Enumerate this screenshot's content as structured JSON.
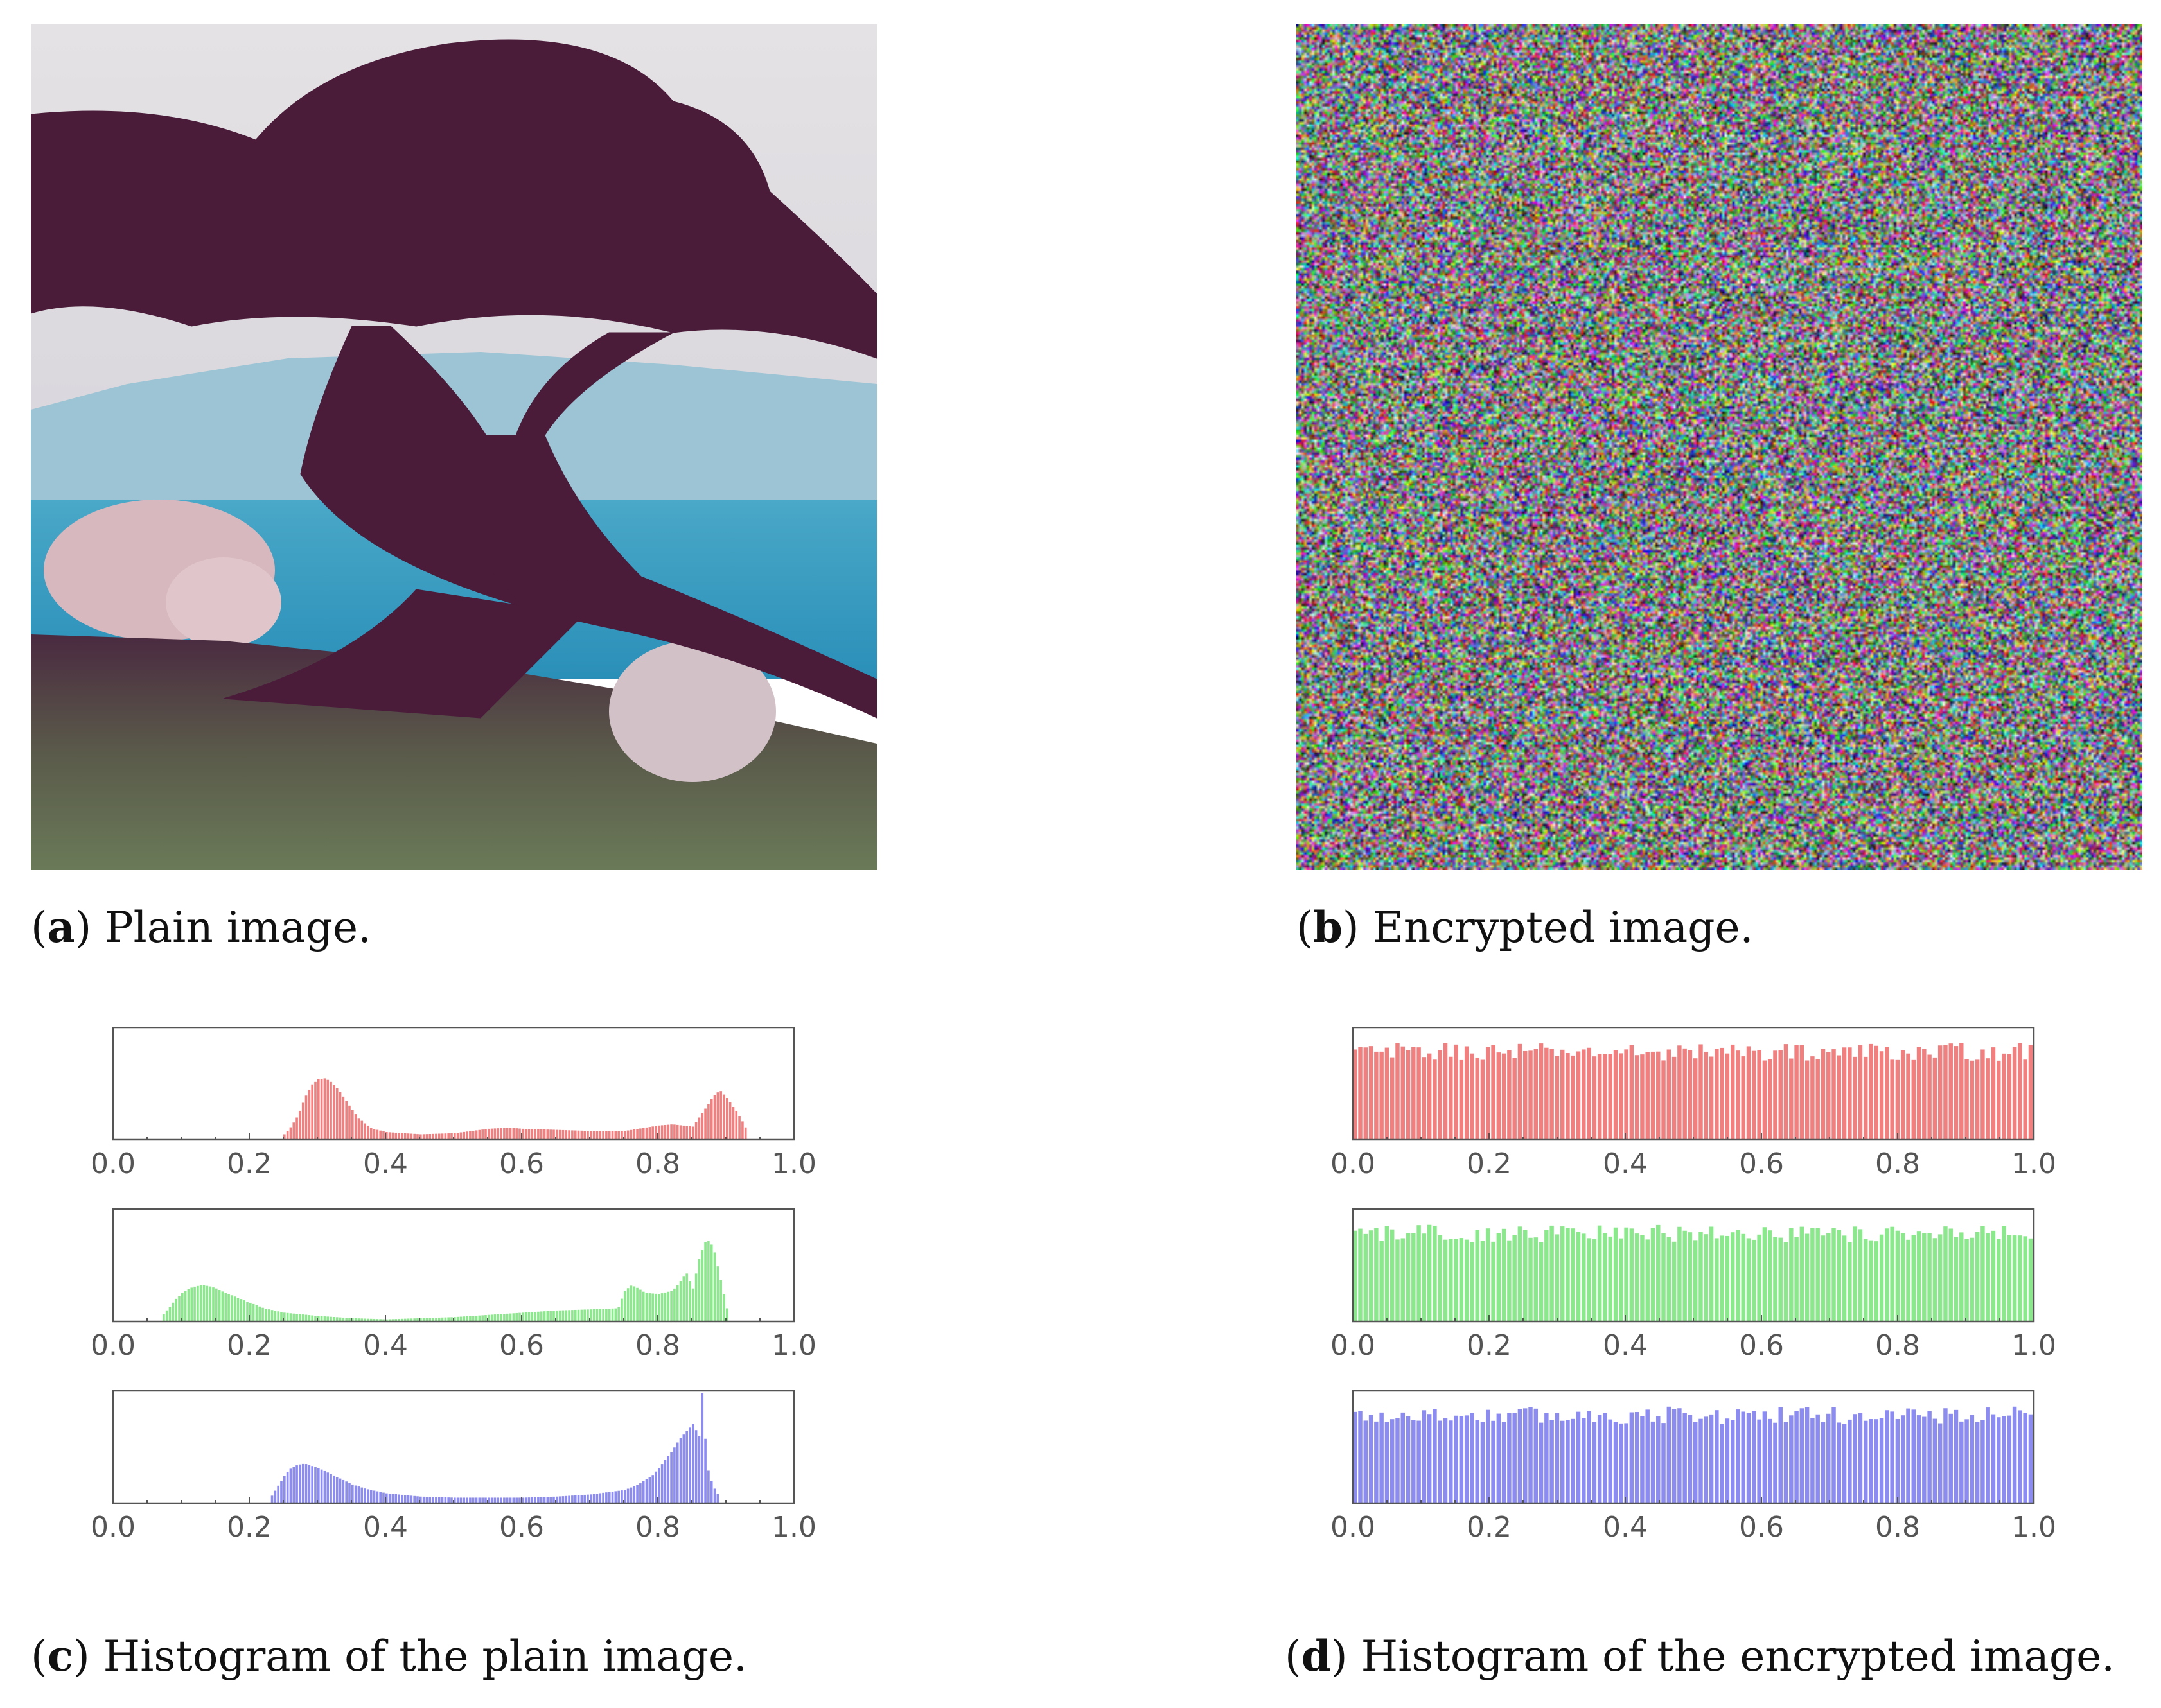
{
  "figure": {
    "panels": [
      {
        "id": "a",
        "caption_label": "a",
        "caption_text": "Plain image.",
        "content": "photo-tree-coast"
      },
      {
        "id": "b",
        "caption_label": "b",
        "caption_text": "Encrypted image.",
        "content": "noise-image"
      },
      {
        "id": "c",
        "caption_label": "c",
        "caption_text": "Histogram of the plain image."
      },
      {
        "id": "d",
        "caption_label": "d",
        "caption_text": "Histogram of the encrypted image."
      }
    ]
  },
  "colors": {
    "red_bars": "#f08080",
    "green_bars": "#8ce88c",
    "blue_bars": "#8c8cf0",
    "axis": "#555555"
  },
  "chart_data": [
    {
      "panel": "c",
      "type": "bar",
      "series": "red",
      "xlim": [
        0.0,
        1.0
      ],
      "xticks": [
        "0.0",
        "0.2",
        "0.4",
        "0.6",
        "0.8",
        "1.0"
      ],
      "x": [
        0.25,
        0.26,
        0.27,
        0.28,
        0.29,
        0.3,
        0.31,
        0.32,
        0.33,
        0.34,
        0.35,
        0.36,
        0.37,
        0.38,
        0.4,
        0.45,
        0.5,
        0.55,
        0.58,
        0.6,
        0.65,
        0.7,
        0.75,
        0.8,
        0.82,
        0.85,
        0.87,
        0.88,
        0.89,
        0.9,
        0.92,
        0.93
      ],
      "values": [
        0.05,
        0.12,
        0.22,
        0.38,
        0.5,
        0.55,
        0.56,
        0.52,
        0.45,
        0.36,
        0.27,
        0.19,
        0.14,
        0.1,
        0.07,
        0.05,
        0.06,
        0.1,
        0.11,
        0.1,
        0.09,
        0.08,
        0.08,
        0.13,
        0.14,
        0.12,
        0.3,
        0.4,
        0.45,
        0.38,
        0.2,
        0.08
      ]
    },
    {
      "panel": "c",
      "type": "bar",
      "series": "green",
      "xlim": [
        0.0,
        1.0
      ],
      "xticks": [
        "0.0",
        "0.2",
        "0.4",
        "0.6",
        "0.8",
        "1.0"
      ],
      "x": [
        0.07,
        0.08,
        0.09,
        0.1,
        0.11,
        0.12,
        0.13,
        0.14,
        0.15,
        0.16,
        0.18,
        0.2,
        0.22,
        0.25,
        0.3,
        0.35,
        0.4,
        0.45,
        0.5,
        0.55,
        0.6,
        0.65,
        0.7,
        0.74,
        0.75,
        0.76,
        0.77,
        0.78,
        0.8,
        0.82,
        0.83,
        0.84,
        0.85,
        0.86,
        0.87,
        0.88,
        0.89,
        0.9
      ],
      "values": [
        0.05,
        0.12,
        0.2,
        0.26,
        0.3,
        0.32,
        0.33,
        0.32,
        0.3,
        0.27,
        0.22,
        0.17,
        0.12,
        0.08,
        0.05,
        0.03,
        0.02,
        0.03,
        0.04,
        0.06,
        0.08,
        0.1,
        0.11,
        0.12,
        0.28,
        0.33,
        0.3,
        0.26,
        0.25,
        0.28,
        0.35,
        0.45,
        0.3,
        0.6,
        0.75,
        0.68,
        0.4,
        0.12
      ]
    },
    {
      "panel": "c",
      "type": "bar",
      "series": "blue",
      "xlim": [
        0.0,
        1.0
      ],
      "xticks": [
        "0.0",
        "0.2",
        "0.4",
        "0.6",
        "0.8",
        "1.0"
      ],
      "x": [
        0.23,
        0.24,
        0.25,
        0.26,
        0.27,
        0.28,
        0.29,
        0.3,
        0.31,
        0.32,
        0.33,
        0.34,
        0.35,
        0.37,
        0.4,
        0.45,
        0.5,
        0.55,
        0.6,
        0.65,
        0.7,
        0.75,
        0.77,
        0.79,
        0.8,
        0.81,
        0.82,
        0.83,
        0.84,
        0.85,
        0.86,
        0.865,
        0.87,
        0.88,
        0.89
      ],
      "values": [
        0.05,
        0.15,
        0.25,
        0.32,
        0.35,
        0.36,
        0.34,
        0.32,
        0.29,
        0.26,
        0.23,
        0.2,
        0.17,
        0.13,
        0.09,
        0.06,
        0.05,
        0.05,
        0.05,
        0.06,
        0.08,
        0.12,
        0.17,
        0.25,
        0.32,
        0.4,
        0.48,
        0.58,
        0.65,
        0.72,
        0.6,
        1.0,
        0.35,
        0.15,
        0.05
      ]
    },
    {
      "panel": "d",
      "type": "bar",
      "series": "red",
      "distribution": "approximately uniform",
      "xlim": [
        0.0,
        1.0
      ],
      "xticks": [
        "0.0",
        "0.2",
        "0.4",
        "0.6",
        "0.8",
        "1.0"
      ],
      "bins": 128,
      "level": 0.8,
      "spread": 0.08
    },
    {
      "panel": "d",
      "type": "bar",
      "series": "green",
      "distribution": "approximately uniform",
      "xlim": [
        0.0,
        1.0
      ],
      "xticks": [
        "0.0",
        "0.2",
        "0.4",
        "0.6",
        "0.8",
        "1.0"
      ],
      "bins": 128,
      "level": 0.8,
      "spread": 0.08
    },
    {
      "panel": "d",
      "type": "bar",
      "series": "blue",
      "distribution": "approximately uniform",
      "xlim": [
        0.0,
        1.0
      ],
      "xticks": [
        "0.0",
        "0.2",
        "0.4",
        "0.6",
        "0.8",
        "1.0"
      ],
      "bins": 128,
      "level": 0.8,
      "spread": 0.08
    }
  ]
}
